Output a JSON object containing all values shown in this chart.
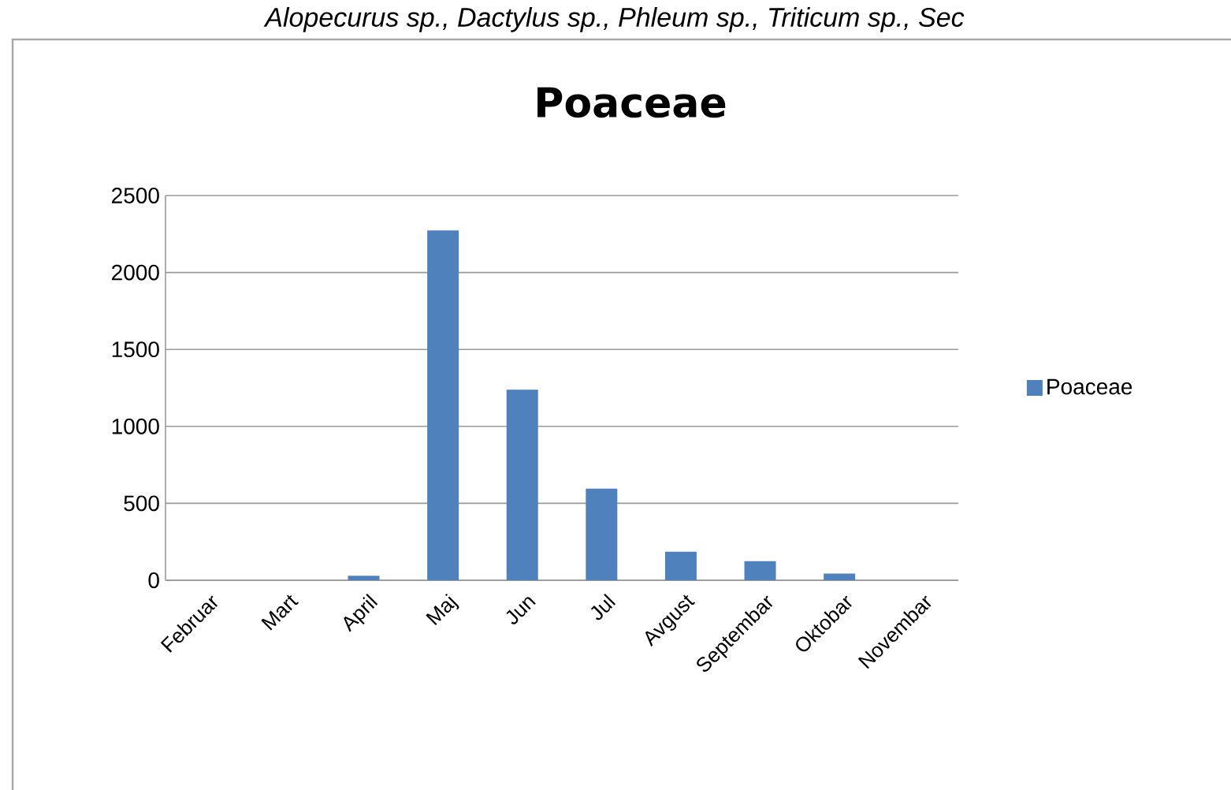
{
  "chart_data": {
    "type": "bar",
    "title": "Poaceae",
    "annotations": [
      "Alopecurus sp., Dactylus sp., Phleum sp., Triticum sp., Sec"
    ],
    "categories": [
      "Februar",
      "Mart",
      "April",
      "Maj",
      "Jun",
      "Jul",
      "Avgust",
      "Septembar",
      "Oktobar",
      "Novembar"
    ],
    "series": [
      {
        "name": "Poaceae",
        "color": "#4f81bd",
        "values": [
          0,
          0,
          29,
          2273,
          1239,
          596,
          186,
          124,
          44,
          0
        ]
      }
    ],
    "ylim": [
      0,
      2500
    ],
    "yticks": [
      0,
      500,
      1000,
      1500,
      2000,
      2500
    ],
    "grid": "y",
    "legend": "right"
  }
}
